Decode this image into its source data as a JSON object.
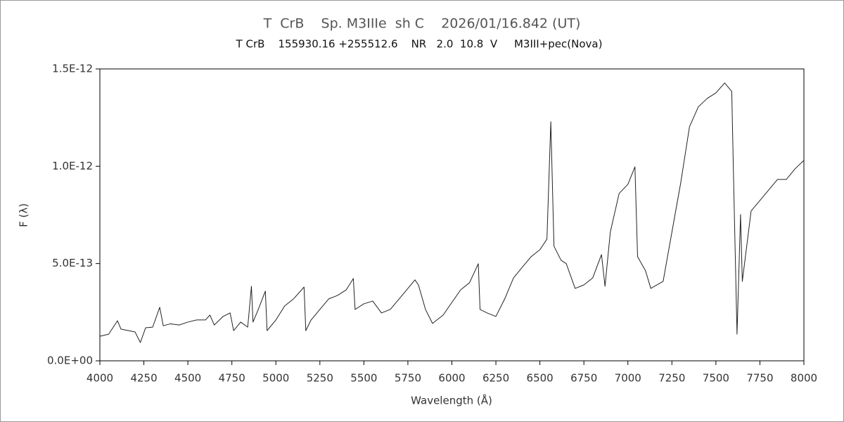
{
  "chart_data": {
    "type": "line",
    "title": "T  CrB    Sp. M3IIIe  sh C    2026/01/16.842 (UT)",
    "subtitle": "T CrB    155930.16 +255512.6    NR   2.0  10.8  V     M3III+pec(Nova)",
    "x_label": "Wavelength (Å)",
    "y_label": "F (λ)",
    "xlim": [
      4000,
      8000
    ],
    "xticks": [
      4000,
      4250,
      4500,
      4750,
      5000,
      5250,
      5500,
      5750,
      6000,
      6250,
      6500,
      6750,
      7000,
      7250,
      7500,
      7750,
      8000
    ],
    "ylim": [
      0,
      1.5e-12
    ],
    "yticks": [
      {
        "value": 0,
        "label": "0.0E+00"
      },
      {
        "value": 5e-13,
        "label": "5.0E-13"
      },
      {
        "value": 1e-12,
        "label": "1.0E-12"
      },
      {
        "value": 1.5e-12,
        "label": "1.5E-12"
      }
    ],
    "x": [
      4000,
      4050,
      4100,
      4120,
      4200,
      4230,
      4260,
      4300,
      4340,
      4360,
      4400,
      4450,
      4500,
      4550,
      4600,
      4625,
      4650,
      4700,
      4740,
      4760,
      4800,
      4840,
      4861,
      4870,
      4900,
      4940,
      4950,
      5000,
      5050,
      5100,
      5160,
      5170,
      5200,
      5250,
      5300,
      5350,
      5400,
      5440,
      5450,
      5500,
      5550,
      5600,
      5650,
      5700,
      5750,
      5790,
      5810,
      5850,
      5890,
      5950,
      6000,
      6050,
      6100,
      6150,
      6160,
      6200,
      6250,
      6300,
      6350,
      6400,
      6450,
      6500,
      6540,
      6562,
      6580,
      6620,
      6650,
      6700,
      6750,
      6800,
      6850,
      6870,
      6900,
      6950,
      7000,
      7040,
      7055,
      7100,
      7130,
      7200,
      7250,
      7300,
      7350,
      7400,
      7450,
      7500,
      7550,
      7590,
      7600,
      7620,
      7640,
      7650,
      7700,
      7750,
      7800,
      7850,
      7900,
      7950,
      8000
    ],
    "series": [
      {
        "color": "#222222",
        "values": [
          1.26e-13,
          1.37e-13,
          2.06e-13,
          1.63e-13,
          1.48e-13,
          9.4e-14,
          1.7e-13,
          1.73e-13,
          2.75e-13,
          1.8e-13,
          1.9e-13,
          1.84e-13,
          1.99e-13,
          2.1e-13,
          2.1e-13,
          2.35e-13,
          1.84e-13,
          2.28e-13,
          2.46e-13,
          1.55e-13,
          1.99e-13,
          1.73e-13,
          3.83e-13,
          1.99e-13,
          2.64e-13,
          3.58e-13,
          1.55e-13,
          2.1e-13,
          2.82e-13,
          3.18e-13,
          3.79e-13,
          1.55e-13,
          2.1e-13,
          2.64e-13,
          3.18e-13,
          3.36e-13,
          3.65e-13,
          4.23e-13,
          2.64e-13,
          2.93e-13,
          3.07e-13,
          2.46e-13,
          2.64e-13,
          3.18e-13,
          3.72e-13,
          4.16e-13,
          3.9e-13,
          2.64e-13,
          1.92e-13,
          2.35e-13,
          3e-13,
          3.65e-13,
          4.01e-13,
          4.99e-13,
          2.64e-13,
          2.46e-13,
          2.28e-13,
          3.18e-13,
          4.26e-13,
          4.81e-13,
          5.35e-13,
          5.71e-13,
          6.25e-13,
          1.229e-12,
          5.89e-13,
          5.17e-13,
          4.99e-13,
          3.72e-13,
          3.9e-13,
          4.26e-13,
          5.46e-13,
          3.83e-13,
          6.61e-13,
          8.6e-13,
          9.07e-13,
          9.97e-13,
          5.35e-13,
          4.63e-13,
          3.72e-13,
          4.08e-13,
          6.61e-13,
          9.14e-13,
          1.203e-12,
          1.305e-12,
          1.348e-12,
          1.377e-12,
          1.428e-12,
          1.384e-12,
          9.5e-13,
          1.37e-13,
          7.52e-13,
          4.08e-13,
          7.7e-13,
          8.24e-13,
          8.78e-13,
          9.32e-13,
          9.32e-13,
          9.87e-13,
          1.03e-12
        ]
      }
    ]
  }
}
